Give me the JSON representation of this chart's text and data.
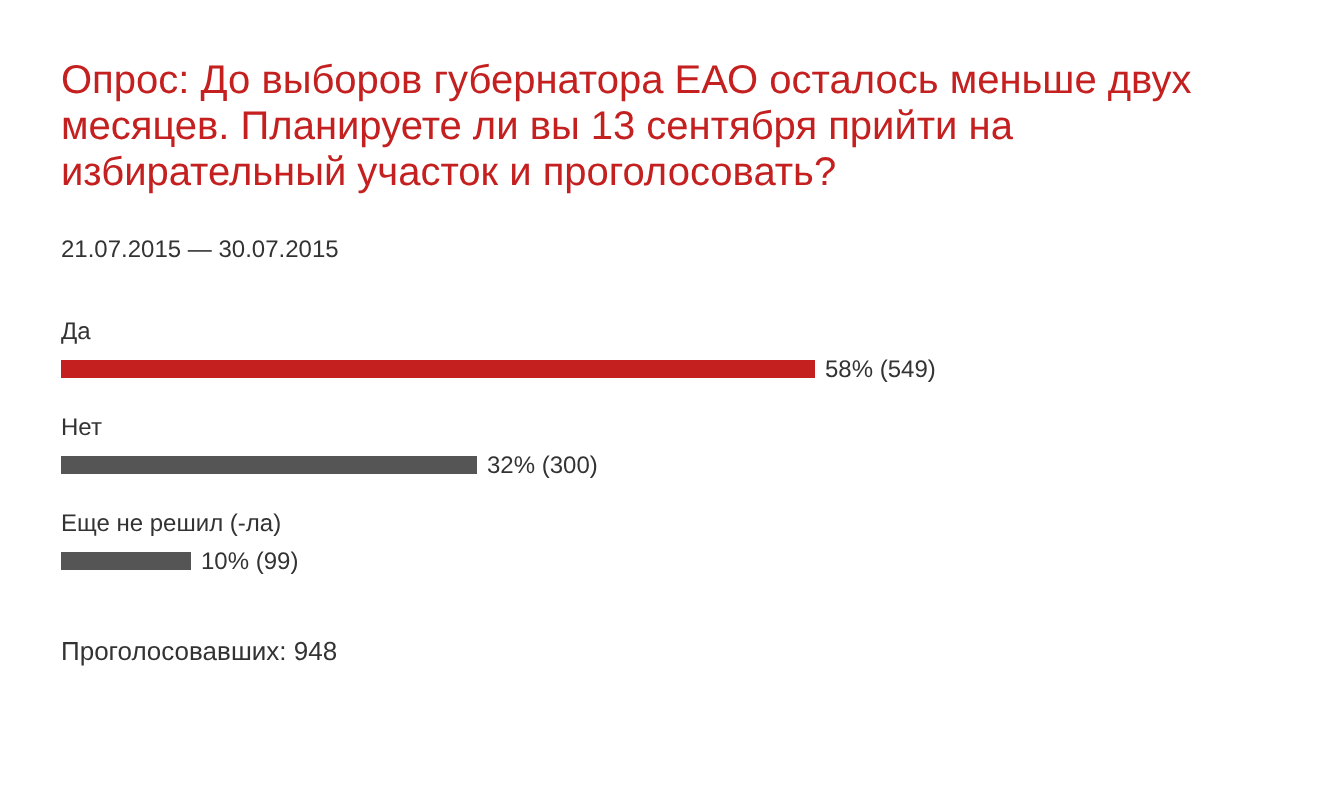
{
  "chart_data": {
    "type": "bar",
    "orientation": "horizontal",
    "title": "Опрос: До выборов губернатора ЕАО осталось меньше двух месяцев. Планируете ли вы 13 сентября прийти на избирательный участок и проголосовать?",
    "subtitle": "21.07.2015 — 30.07.2015",
    "categories": [
      "Да",
      "Нет",
      "Еще не решил (-ла)"
    ],
    "values": [
      58,
      32,
      10
    ],
    "colors": [
      "#c42020",
      "#555555",
      "#555555"
    ],
    "value_labels": [
      "58% (549)",
      "32% (300)",
      "10% (99)"
    ],
    "annotations": [
      "Проголосовавших: 948"
    ]
  }
}
